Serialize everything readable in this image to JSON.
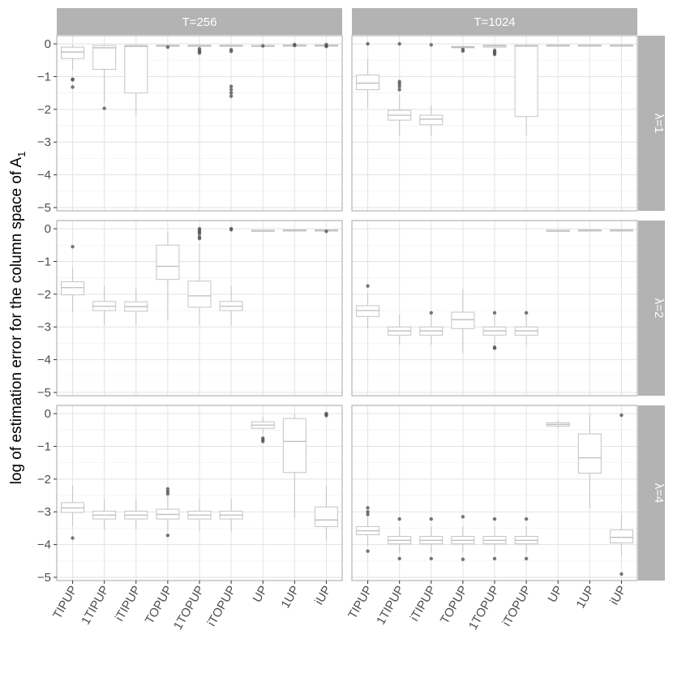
{
  "chart_data": {
    "type": "boxplot",
    "ylabel": "log of estimation error for the column space of A",
    "ylabel_subscript": "1",
    "ylim": [
      -5.1,
      0.25
    ],
    "yticks": [
      0,
      -1,
      -2,
      -3,
      -4,
      -5
    ],
    "ytick_labels": [
      "0",
      "−1",
      "−2",
      "−3",
      "−4",
      "−5"
    ],
    "categories": [
      "TIPUP",
      "1TIPUP",
      "iTIPUP",
      "TOPUP",
      "1TOPUP",
      "iTOPUP",
      "UP",
      "1UP",
      "iUP"
    ],
    "columns": [
      "T=256",
      "T=1024"
    ],
    "rows": [
      "λ=1",
      "λ=2",
      "λ=4"
    ],
    "grid": true,
    "panels": [
      {
        "row": 0,
        "col": 0,
        "boxes": [
          {
            "wlo": -0.8,
            "q1": -0.45,
            "med": -0.25,
            "q3": -0.1,
            "whi": -0.02,
            "out": [
              -1.08,
              -1.1,
              -1.32
            ]
          },
          {
            "wlo": -1.8,
            "q1": -0.78,
            "med": -0.12,
            "q3": -0.05,
            "whi": -0.01,
            "out": [
              -1.97
            ]
          },
          {
            "wlo": -2.15,
            "q1": -1.5,
            "med": -0.08,
            "q3": -0.04,
            "whi": -0.01,
            "out": []
          },
          {
            "wlo": -0.08,
            "q1": -0.06,
            "med": -0.05,
            "q3": -0.04,
            "whi": -0.03,
            "out": [
              -0.1
            ]
          },
          {
            "wlo": -0.08,
            "q1": -0.06,
            "med": -0.05,
            "q3": -0.04,
            "whi": -0.03,
            "out": [
              -0.15,
              -0.2,
              -0.24,
              -0.28
            ]
          },
          {
            "wlo": -0.08,
            "q1": -0.06,
            "med": -0.05,
            "q3": -0.04,
            "whi": -0.03,
            "out": [
              -0.18,
              -0.23,
              -1.3,
              -1.4,
              -1.5,
              -1.6
            ]
          },
          {
            "wlo": -0.07,
            "q1": -0.06,
            "med": -0.05,
            "q3": -0.045,
            "whi": -0.04,
            "out": [
              -0.06
            ]
          },
          {
            "wlo": -0.06,
            "q1": -0.05,
            "med": -0.04,
            "q3": -0.035,
            "whi": -0.03,
            "out": [
              -0.02,
              -0.05
            ]
          },
          {
            "wlo": -0.06,
            "q1": -0.05,
            "med": -0.04,
            "q3": -0.035,
            "whi": -0.03,
            "out": [
              -0.02,
              -0.06,
              -0.08
            ]
          }
        ]
      },
      {
        "row": 0,
        "col": 1,
        "boxes": [
          {
            "wlo": -1.95,
            "q1": -1.4,
            "med": -1.2,
            "q3": -0.95,
            "whi": -0.45,
            "out": [
              0.0
            ]
          },
          {
            "wlo": -2.82,
            "q1": -2.33,
            "med": -2.18,
            "q3": -2.03,
            "whi": -1.55,
            "out": [
              -1.15,
              -1.22,
              -1.3,
              -1.4,
              0.0
            ]
          },
          {
            "wlo": -2.8,
            "q1": -2.47,
            "med": -2.3,
            "q3": -2.18,
            "whi": -1.88,
            "out": [
              -0.03
            ]
          },
          {
            "wlo": -0.15,
            "q1": -0.12,
            "med": -0.1,
            "q3": -0.08,
            "whi": -0.06,
            "out": [
              -0.17,
              -0.22
            ]
          },
          {
            "wlo": -0.15,
            "q1": -0.1,
            "med": -0.06,
            "q3": -0.04,
            "whi": -0.02,
            "out": [
              -0.2,
              -0.24,
              -0.28,
              -0.32
            ]
          },
          {
            "wlo": -2.8,
            "q1": -2.22,
            "med": -0.07,
            "q3": -0.04,
            "whi": -0.01,
            "out": []
          },
          {
            "wlo": -0.05,
            "q1": -0.045,
            "med": -0.04,
            "q3": -0.035,
            "whi": -0.03,
            "out": []
          },
          {
            "wlo": -0.05,
            "q1": -0.045,
            "med": -0.04,
            "q3": -0.035,
            "whi": -0.03,
            "out": []
          },
          {
            "wlo": -0.05,
            "q1": -0.045,
            "med": -0.04,
            "q3": -0.035,
            "whi": -0.03,
            "out": []
          }
        ]
      },
      {
        "row": 1,
        "col": 0,
        "boxes": [
          {
            "wlo": -2.55,
            "q1": -2.02,
            "med": -1.8,
            "q3": -1.62,
            "whi": -1.2,
            "out": [
              -0.55
            ]
          },
          {
            "wlo": -2.95,
            "q1": -2.5,
            "med": -2.37,
            "q3": -2.22,
            "whi": -1.75,
            "out": []
          },
          {
            "wlo": -2.95,
            "q1": -2.52,
            "med": -2.38,
            "q3": -2.23,
            "whi": -1.8,
            "out": []
          },
          {
            "wlo": -2.8,
            "q1": -1.55,
            "med": -1.15,
            "q3": -0.5,
            "whi": -0.08,
            "out": []
          },
          {
            "wlo": -2.95,
            "q1": -2.4,
            "med": -2.05,
            "q3": -1.6,
            "whi": -0.45,
            "out": [
              0.0,
              -0.05,
              -0.1,
              -0.15,
              -0.25,
              -0.3
            ]
          },
          {
            "wlo": -2.95,
            "q1": -2.5,
            "med": -2.37,
            "q3": -2.22,
            "whi": -1.75,
            "out": [
              0.0,
              -0.03
            ]
          },
          {
            "wlo": -0.06,
            "q1": -0.055,
            "med": -0.05,
            "q3": -0.045,
            "whi": -0.04,
            "out": []
          },
          {
            "wlo": -0.05,
            "q1": -0.045,
            "med": -0.04,
            "q3": -0.035,
            "whi": -0.03,
            "out": []
          },
          {
            "wlo": -0.06,
            "q1": -0.05,
            "med": -0.04,
            "q3": -0.035,
            "whi": -0.03,
            "out": [
              -0.08
            ]
          }
        ]
      },
      {
        "row": 1,
        "col": 1,
        "boxes": [
          {
            "wlo": -3.05,
            "q1": -2.68,
            "med": -2.5,
            "q3": -2.35,
            "whi": -1.95,
            "out": [
              -1.75
            ]
          },
          {
            "wlo": -3.55,
            "q1": -3.25,
            "med": -3.12,
            "q3": -3.0,
            "whi": -2.62,
            "out": []
          },
          {
            "wlo": -3.55,
            "q1": -3.25,
            "med": -3.12,
            "q3": -3.0,
            "whi": -2.62,
            "out": [
              -2.57
            ]
          },
          {
            "wlo": -3.8,
            "q1": -3.05,
            "med": -2.78,
            "q3": -2.55,
            "whi": -1.85,
            "out": []
          },
          {
            "wlo": -3.55,
            "q1": -3.25,
            "med": -3.12,
            "q3": -3.0,
            "whi": -2.62,
            "out": [
              -2.57,
              -3.62,
              -3.65
            ]
          },
          {
            "wlo": -3.55,
            "q1": -3.25,
            "med": -3.12,
            "q3": -3.0,
            "whi": -2.62,
            "out": [
              -2.57
            ]
          },
          {
            "wlo": -0.06,
            "q1": -0.055,
            "med": -0.05,
            "q3": -0.045,
            "whi": -0.04,
            "out": []
          },
          {
            "wlo": -0.05,
            "q1": -0.045,
            "med": -0.04,
            "q3": -0.035,
            "whi": -0.03,
            "out": []
          },
          {
            "wlo": -0.05,
            "q1": -0.045,
            "med": -0.04,
            "q3": -0.035,
            "whi": -0.03,
            "out": []
          }
        ]
      },
      {
        "row": 2,
        "col": 0,
        "boxes": [
          {
            "wlo": -3.45,
            "q1": -3.02,
            "med": -2.88,
            "q3": -2.72,
            "whi": -2.2,
            "out": [
              -3.8
            ]
          },
          {
            "wlo": -3.55,
            "q1": -3.22,
            "med": -3.1,
            "q3": -2.98,
            "whi": -2.6,
            "out": []
          },
          {
            "wlo": -3.55,
            "q1": -3.22,
            "med": -3.1,
            "q3": -2.98,
            "whi": -2.6,
            "out": []
          },
          {
            "wlo": -3.6,
            "q1": -3.22,
            "med": -3.08,
            "q3": -2.92,
            "whi": -2.5,
            "out": [
              -2.3,
              -2.38,
              -2.45,
              -3.72
            ]
          },
          {
            "wlo": -3.6,
            "q1": -3.22,
            "med": -3.1,
            "q3": -2.98,
            "whi": -2.6,
            "out": []
          },
          {
            "wlo": -3.6,
            "q1": -3.22,
            "med": -3.1,
            "q3": -2.98,
            "whi": -2.6,
            "out": []
          },
          {
            "wlo": -0.62,
            "q1": -0.45,
            "med": -0.35,
            "q3": -0.25,
            "whi": -0.1,
            "out": [
              -0.75,
              -0.8,
              -0.85
            ]
          },
          {
            "wlo": -3.2,
            "q1": -1.8,
            "med": -0.85,
            "q3": -0.15,
            "whi": -0.02,
            "out": []
          },
          {
            "wlo": -3.85,
            "q1": -3.45,
            "med": -3.25,
            "q3": -2.85,
            "whi": -2.2,
            "out": [
              0.0,
              -0.03,
              -0.06
            ]
          }
        ]
      },
      {
        "row": 2,
        "col": 1,
        "boxes": [
          {
            "wlo": -4.05,
            "q1": -3.7,
            "med": -3.58,
            "q3": -3.45,
            "whi": -3.15,
            "out": [
              -2.88,
              -3.0,
              -3.08,
              -4.2
            ]
          },
          {
            "wlo": -4.25,
            "q1": -3.98,
            "med": -3.87,
            "q3": -3.75,
            "whi": -3.45,
            "out": [
              -3.22,
              -4.43
            ]
          },
          {
            "wlo": -4.25,
            "q1": -3.98,
            "med": -3.87,
            "q3": -3.75,
            "whi": -3.45,
            "out": [
              -3.22,
              -4.43
            ]
          },
          {
            "wlo": -4.25,
            "q1": -3.98,
            "med": -3.87,
            "q3": -3.75,
            "whi": -3.45,
            "out": [
              -3.15,
              -4.45
            ]
          },
          {
            "wlo": -4.25,
            "q1": -3.98,
            "med": -3.87,
            "q3": -3.75,
            "whi": -3.45,
            "out": [
              -3.22,
              -4.43
            ]
          },
          {
            "wlo": -4.25,
            "q1": -3.98,
            "med": -3.87,
            "q3": -3.75,
            "whi": -3.45,
            "out": [
              -3.22,
              -4.43
            ]
          },
          {
            "wlo": -0.45,
            "q1": -0.38,
            "med": -0.33,
            "q3": -0.28,
            "whi": -0.22,
            "out": []
          },
          {
            "wlo": -2.9,
            "q1": -1.82,
            "med": -1.35,
            "q3": -0.62,
            "whi": -0.02,
            "out": []
          },
          {
            "wlo": -4.35,
            "q1": -3.95,
            "med": -3.78,
            "q3": -3.55,
            "whi": -3.05,
            "out": [
              -0.05,
              -4.9
            ]
          }
        ]
      }
    ]
  }
}
